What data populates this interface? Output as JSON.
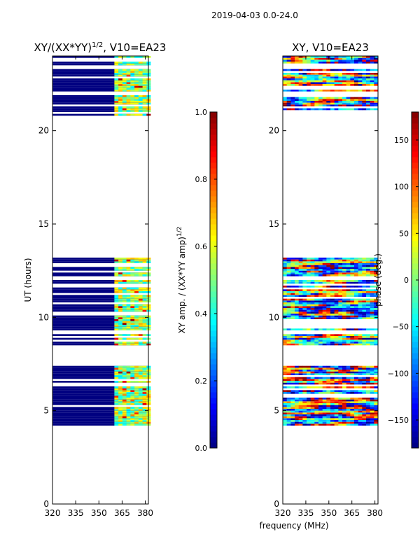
{
  "figure": {
    "suptitle": "2019-04-03 0.0-24.0",
    "shared_xlabel": "frequency (MHz)"
  },
  "colors": {
    "background": "#ffffff",
    "no_data": "#ffffff",
    "jet_low": "#00007f",
    "jet_mid": "#7fff7f",
    "jet_high": "#7f0000"
  },
  "chart_data": [
    {
      "type": "heatmap",
      "title_main": "XY/(XX*YY)",
      "title_sup": "1/2",
      "title_tail": ", V10=EA23",
      "xlabel": "",
      "ylabel": "UT (hours)",
      "xlim": [
        320,
        382
      ],
      "ylim": [
        0,
        24
      ],
      "xticks": [
        "320",
        "335",
        "350",
        "365",
        "380"
      ],
      "xtick_values": [
        320,
        335,
        350,
        365,
        380
      ],
      "yticks": [
        "0",
        "5",
        "10",
        "15",
        "20"
      ],
      "ytick_values": [
        0,
        5,
        10,
        15,
        20
      ],
      "colormap": "jet",
      "value_range": [
        0,
        1
      ],
      "baseline_value": 0.0,
      "bright_band_start_mhz": 360,
      "data_intervals_hours": [
        [
          4.2,
          7.4
        ],
        [
          8.5,
          9.1
        ],
        [
          9.3,
          12.0
        ],
        [
          12.2,
          13.2
        ],
        [
          20.8,
          21.9
        ],
        [
          22.1,
          23.3
        ],
        [
          23.5,
          24.0
        ]
      ],
      "colorbar": {
        "label_main": "XY amp. / (XX*YY amp)",
        "label_sup": "1/2",
        "ticks": [
          "0.0",
          "0.2",
          "0.4",
          "0.6",
          "0.8",
          "1.0"
        ],
        "tick_values": [
          0.0,
          0.2,
          0.4,
          0.6,
          0.8,
          1.0
        ],
        "range": [
          0,
          1
        ]
      }
    },
    {
      "type": "heatmap",
      "title": "XY, V10=EA23",
      "xlabel": "frequency (MHz)",
      "ylabel": "",
      "xlim": [
        320,
        382
      ],
      "ylim": [
        0,
        24
      ],
      "xticks": [
        "320",
        "335",
        "350",
        "365",
        "380"
      ],
      "xtick_values": [
        320,
        335,
        350,
        365,
        380
      ],
      "yticks": [
        "0",
        "5",
        "10",
        "15",
        "20"
      ],
      "ytick_values": [
        0,
        5,
        10,
        15,
        20
      ],
      "colormap": "jet",
      "value_range": [
        -180,
        180
      ],
      "data_intervals_hours": [
        [
          4.2,
          7.4
        ],
        [
          8.5,
          9.1
        ],
        [
          9.3,
          12.0
        ],
        [
          12.2,
          13.2
        ],
        [
          20.8,
          21.9
        ],
        [
          22.1,
          23.3
        ],
        [
          23.5,
          24.0
        ]
      ],
      "colorbar": {
        "label": "phase (deg.)",
        "ticks": [
          "−150",
          "−100",
          "−50",
          "0",
          "50",
          "100",
          "150"
        ],
        "tick_values": [
          -150,
          -100,
          -50,
          0,
          50,
          100,
          150
        ],
        "range": [
          -180,
          180
        ]
      }
    }
  ]
}
